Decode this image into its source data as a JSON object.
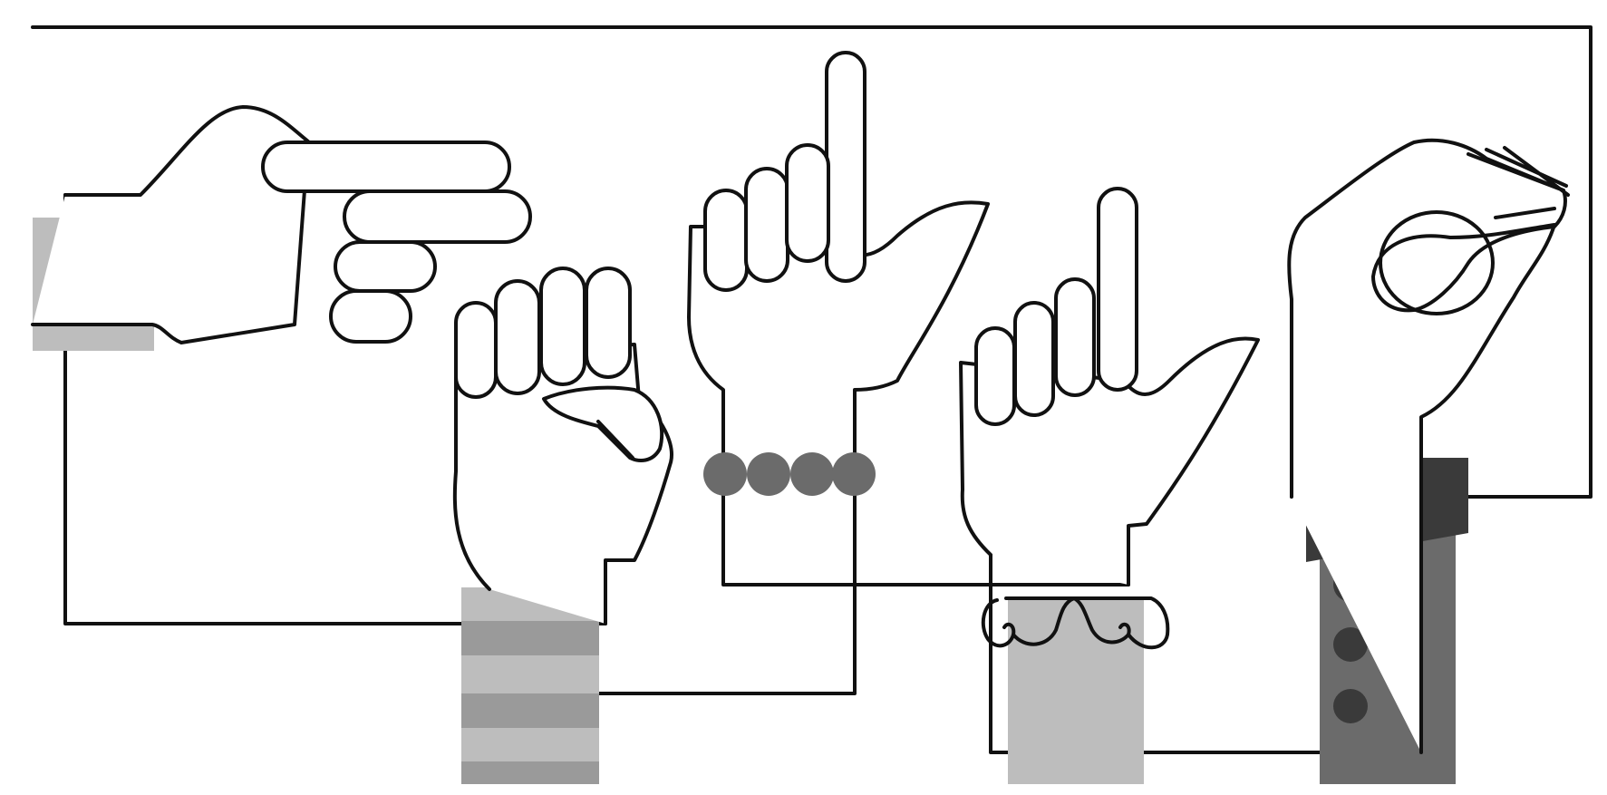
{
  "illustration": {
    "subject": "",
    "hand_count": 5,
    "colors": {
      "stroke": "#111111",
      "background": "#ffffff",
      "cuff_light": "#bdbdbd",
      "cuff_mid": "#9a9a9a",
      "cuff_dark": "#6b6b6b",
      "cuff_darkest": "#3a3a3a"
    }
  }
}
